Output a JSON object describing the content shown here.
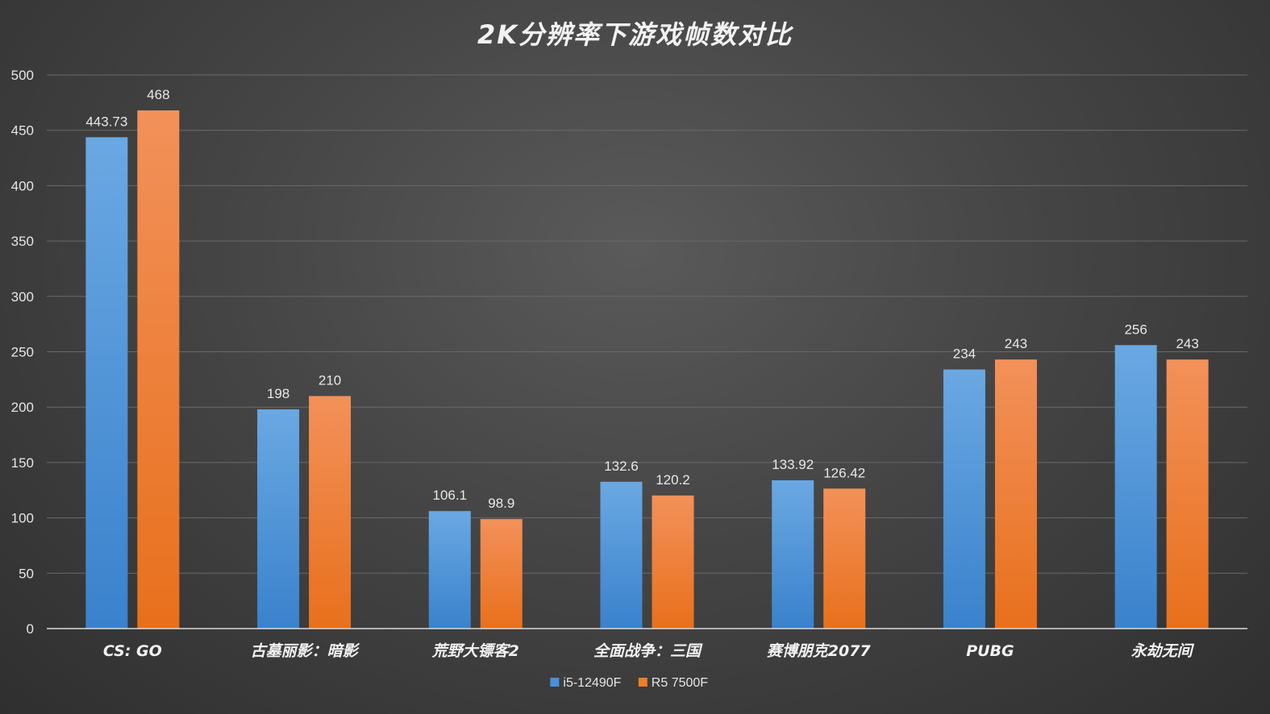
{
  "chart_data": {
    "type": "bar",
    "title": "2K分辨率下游戏帧数对比",
    "xlabel": "",
    "ylabel": "",
    "categories": [
      "CS: GO",
      "古墓丽影：暗影",
      "荒野大镖客2",
      "全面战争：三国",
      "赛博朋克2077",
      "PUBG",
      "永劫无间"
    ],
    "series": [
      {
        "name": "i5-12490F",
        "values": [
          443.73,
          198,
          106.1,
          132.6,
          133.92,
          234,
          256
        ],
        "labels": [
          "443.73",
          "198",
          "106.1",
          "132.6",
          "133.92",
          "234",
          "256"
        ],
        "color": "#4a90d9"
      },
      {
        "name": "R5 7500F",
        "values": [
          468,
          210,
          98.9,
          120.2,
          126.42,
          243,
          243
        ],
        "labels": [
          "468",
          "210",
          "98.9",
          "120.2",
          "126.42",
          "243",
          "243"
        ],
        "color": "#f07d2a"
      }
    ],
    "ylim": [
      0,
      500
    ],
    "yticks": [
      0,
      50,
      100,
      150,
      200,
      250,
      300,
      350,
      400,
      450,
      500
    ],
    "grid": true,
    "legend_position": "bottom-center"
  }
}
